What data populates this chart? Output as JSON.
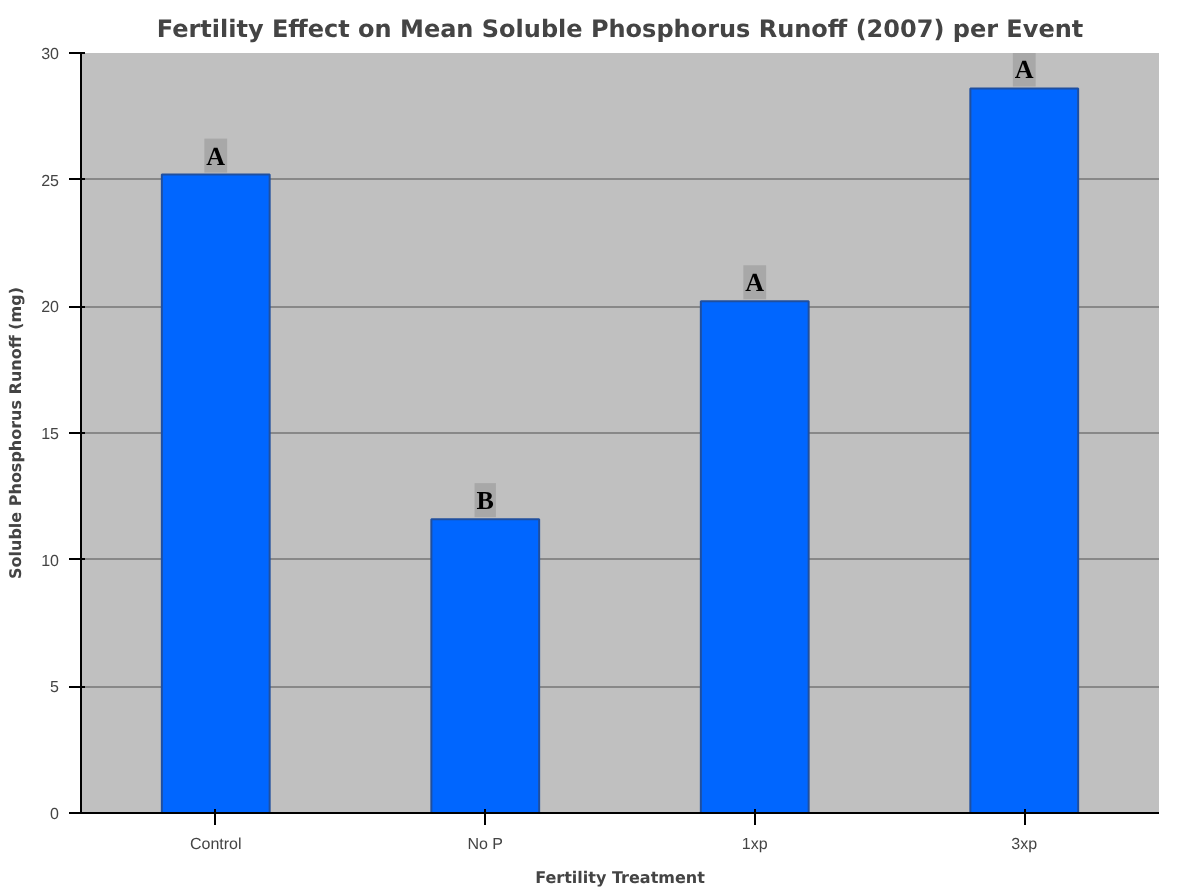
{
  "chart_data": {
    "type": "bar",
    "title": "Fertility Effect on Mean Soluble Phosphorus Runoff (2007) per Event",
    "xlabel": "Fertility Treatment",
    "ylabel": "Soluble Phosphorus Runoff (mg)",
    "categories": [
      "Control",
      "No P",
      "1xp",
      "3xp"
    ],
    "values": [
      25.2,
      11.6,
      20.2,
      28.6
    ],
    "color": "#0066ff",
    "ylim": [
      0,
      30
    ],
    "yticks": [
      0,
      5,
      10,
      15,
      20,
      25,
      30
    ],
    "grid": "y",
    "annotations": [
      {
        "text": "A",
        "x": "Control",
        "y": 25.2
      },
      {
        "text": "B",
        "x": "No P",
        "y": 11.6
      },
      {
        "text": "A",
        "x": "1xp",
        "y": 20.2
      },
      {
        "text": "A",
        "x": "3xp",
        "y": 28.6
      }
    ]
  }
}
